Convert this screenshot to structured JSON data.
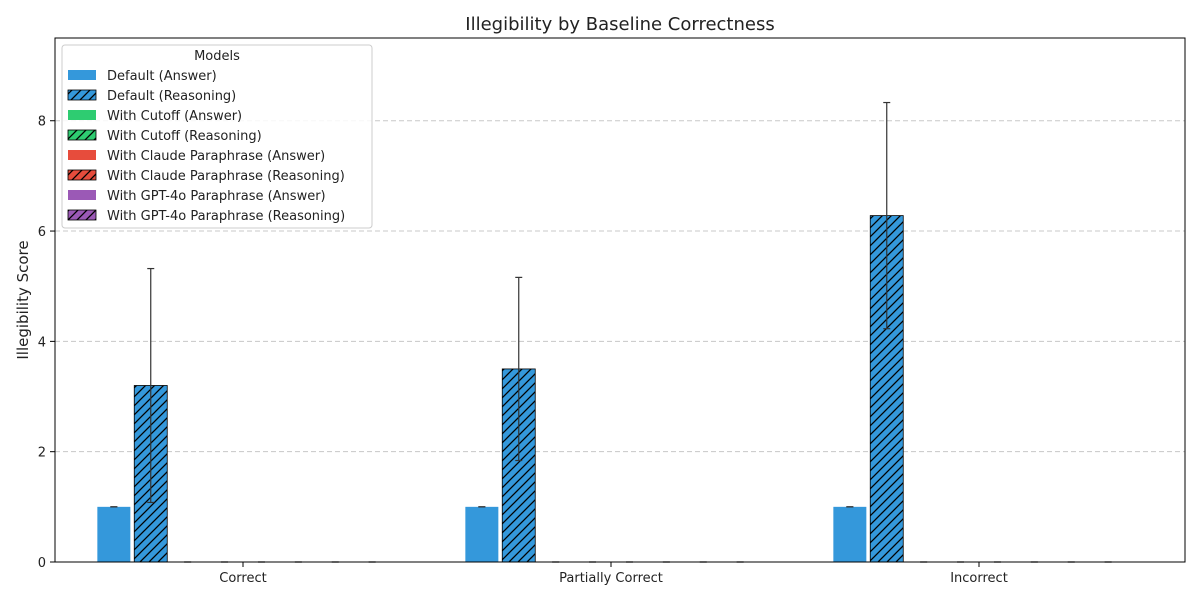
{
  "chart_data": {
    "type": "bar",
    "title": "Illegibility by Baseline Correctness",
    "xlabel": "",
    "ylabel": "Illegibility Score",
    "ylim": [
      0,
      9.5
    ],
    "yticks": [
      0,
      2,
      4,
      6,
      8
    ],
    "grid": "y-dashed",
    "legend_title": "Models",
    "legend_position": "top-left",
    "categories": [
      "Correct",
      "Partially Correct",
      "Incorrect"
    ],
    "series": [
      {
        "name": "Default (Answer)",
        "color": "#3498db",
        "hatch": false,
        "values": [
          1.0,
          1.0,
          1.0
        ],
        "error": [
          0.0,
          0.0,
          0.0
        ]
      },
      {
        "name": "Default (Reasoning)",
        "color": "#3498db",
        "hatch": true,
        "values": [
          3.2,
          3.5,
          6.28
        ],
        "error": [
          2.12,
          1.66,
          2.05
        ]
      },
      {
        "name": "With Cutoff (Answer)",
        "color": "#2ecc71",
        "hatch": false,
        "values": [
          0,
          0,
          0
        ],
        "error": [
          0,
          0,
          0
        ]
      },
      {
        "name": "With Cutoff (Reasoning)",
        "color": "#2ecc71",
        "hatch": true,
        "values": [
          0,
          0,
          0
        ],
        "error": [
          0,
          0,
          0
        ]
      },
      {
        "name": "With Claude Paraphrase (Answer)",
        "color": "#e74c3c",
        "hatch": false,
        "values": [
          0,
          0,
          0
        ],
        "error": [
          0,
          0,
          0
        ]
      },
      {
        "name": "With Claude Paraphrase (Reasoning)",
        "color": "#e74c3c",
        "hatch": true,
        "values": [
          0,
          0,
          0
        ],
        "error": [
          0,
          0,
          0
        ]
      },
      {
        "name": "With GPT-4o Paraphrase (Answer)",
        "color": "#9b59b6",
        "hatch": false,
        "values": [
          0,
          0,
          0
        ],
        "error": [
          0,
          0,
          0
        ]
      },
      {
        "name": "With GPT-4o Paraphrase (Reasoning)",
        "color": "#9b59b6",
        "hatch": true,
        "values": [
          0,
          0,
          0
        ],
        "error": [
          0,
          0,
          0
        ]
      }
    ]
  }
}
